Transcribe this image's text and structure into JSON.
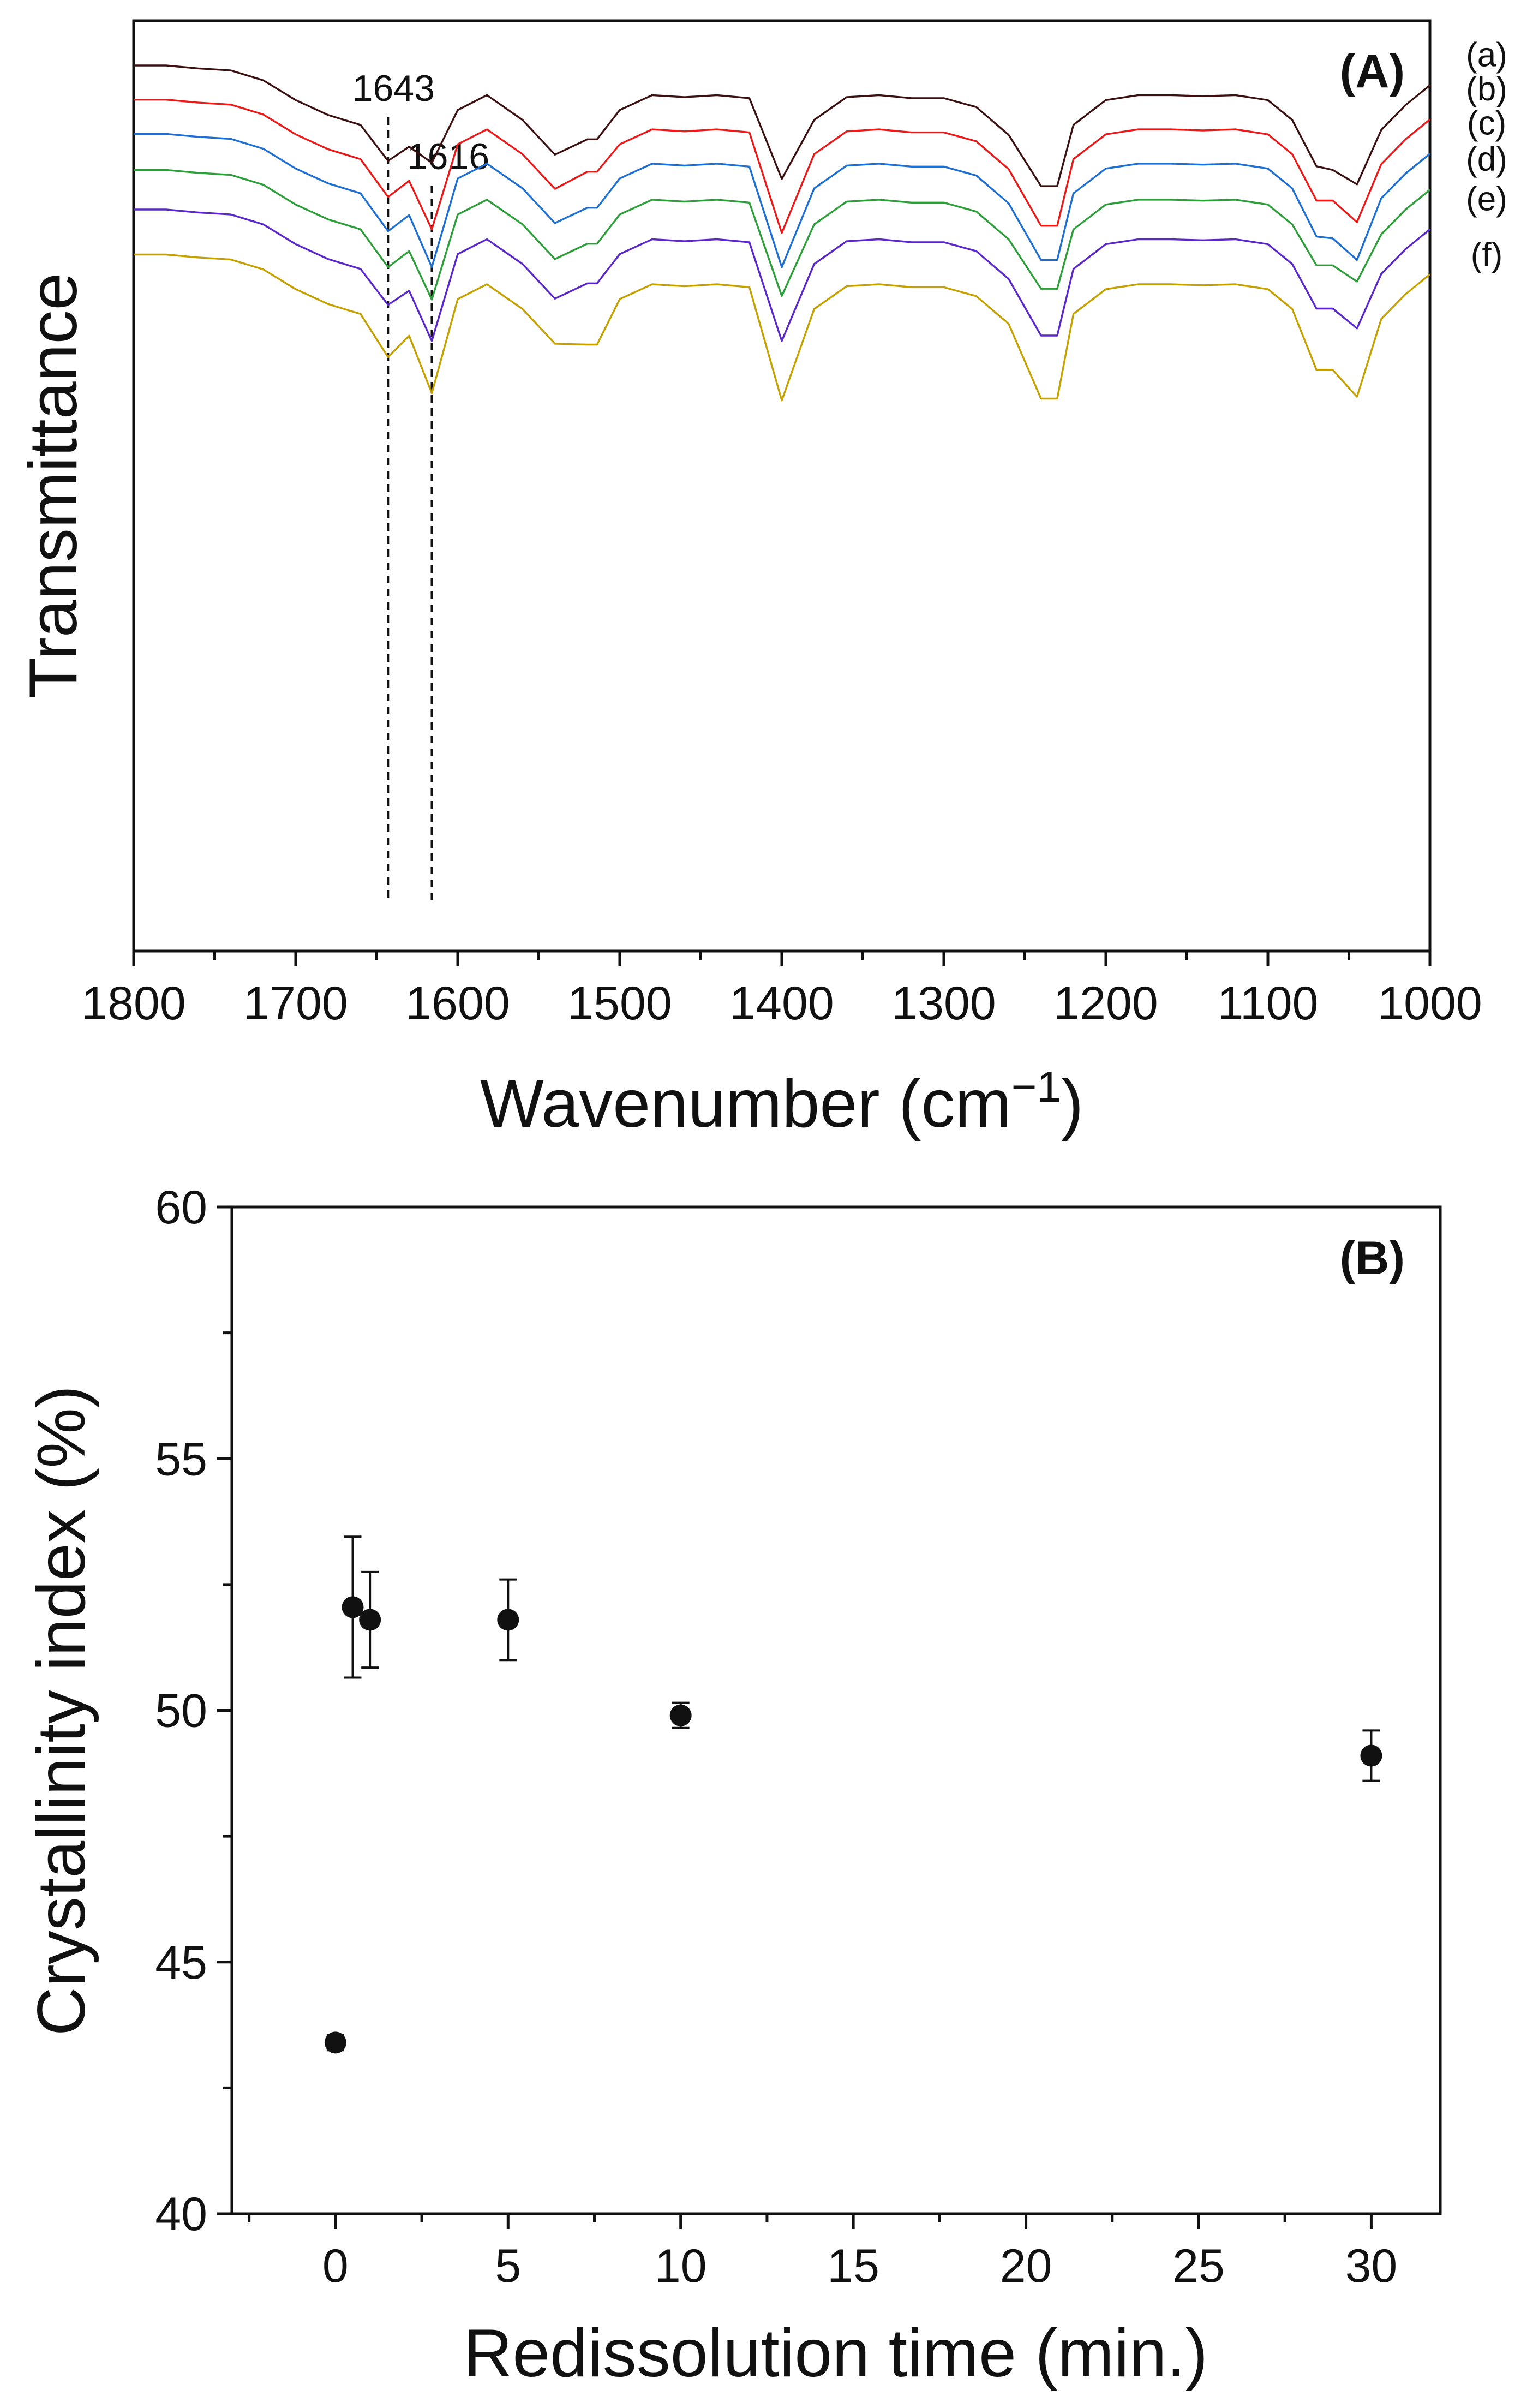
{
  "chart_data": [
    {
      "panel": "(A)",
      "type": "line",
      "xlabel": "Wavenumber (cm",
      "xlabel_superscript": "−1",
      "xlabel_suffix": ")",
      "ylabel": "Transmittance",
      "xlim": [
        1800,
        1000
      ],
      "x_reversed": true,
      "xticks": [
        1800,
        1700,
        1600,
        1500,
        1400,
        1300,
        1200,
        1100,
        1000
      ],
      "y_ticks_shown": false,
      "reference_lines": [
        {
          "x": 1643,
          "label": "1643"
        },
        {
          "x": 1616,
          "label": "1616"
        }
      ],
      "x": [
        1800,
        1780,
        1760,
        1740,
        1720,
        1700,
        1680,
        1660,
        1643,
        1630,
        1616,
        1600,
        1582,
        1560,
        1540,
        1520,
        1514,
        1500,
        1480,
        1460,
        1440,
        1420,
        1400,
        1380,
        1360,
        1340,
        1320,
        1300,
        1280,
        1260,
        1240,
        1230,
        1220,
        1200,
        1180,
        1160,
        1140,
        1120,
        1100,
        1085,
        1070,
        1060,
        1045,
        1030,
        1015,
        1000
      ],
      "series": [
        {
          "name": "(a)",
          "color": "#3a1010",
          "offset": 0.0,
          "dips": [
            0.53,
            0.54,
            0.41,
            0.63,
            0.67,
            0.56,
            0.58,
            0.66
          ]
        },
        {
          "name": "(b)",
          "color": "#e81a1a",
          "offset": 0.19,
          "dips": [
            0.54,
            0.72,
            0.4,
            0.74,
            0.7,
            0.56,
            0.56,
            0.68
          ]
        },
        {
          "name": "(c)",
          "color": "#1f6fd1",
          "offset": 0.38,
          "dips": [
            0.54,
            0.74,
            0.41,
            0.74,
            0.7,
            0.57,
            0.58,
            0.7
          ]
        },
        {
          "name": "(d)",
          "color": "#2e9e3a",
          "offset": 0.58,
          "dips": [
            0.54,
            0.72,
            0.41,
            0.7,
            0.66,
            0.53,
            0.53,
            0.62
          ]
        },
        {
          "name": "(e)",
          "color": "#5a28c8",
          "offset": 0.8,
          "dips": [
            0.53,
            0.73,
            0.41,
            0.73,
            0.7,
            0.55,
            0.55,
            0.66
          ]
        },
        {
          "name": "(f)",
          "color": "#c4a000",
          "offset": 1.05,
          "dips": [
            0.57,
            0.77,
            0.5,
            0.81,
            0.8,
            0.64,
            0.64,
            0.79
          ]
        }
      ]
    },
    {
      "panel": "(B)",
      "type": "scatter",
      "xlabel": "Redissolution time (min.)",
      "ylabel": "Crystallinity index (%)",
      "xlim": [
        -3,
        32
      ],
      "ylim": [
        40,
        60
      ],
      "xticks": [
        0,
        5,
        10,
        15,
        20,
        25,
        30
      ],
      "yticks": [
        40,
        45,
        50,
        55,
        60
      ],
      "x": [
        0,
        0.5,
        1,
        5,
        10,
        30
      ],
      "y": [
        43.4,
        52.05,
        51.8,
        51.8,
        49.9,
        49.1
      ],
      "yerr": [
        0.15,
        1.4,
        0.95,
        0.8,
        0.25,
        0.5
      ]
    }
  ]
}
